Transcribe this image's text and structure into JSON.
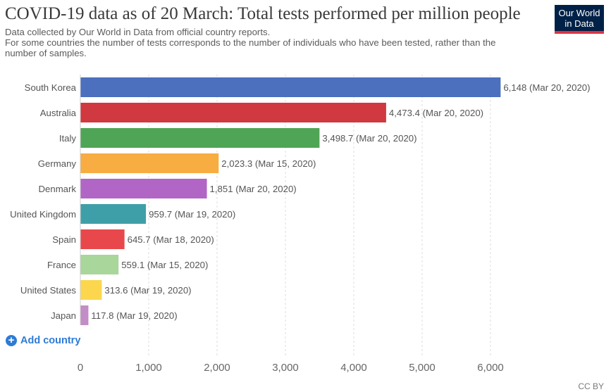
{
  "header": {
    "title": "COVID-19 data as of 20 March: Total tests performed per million people",
    "subtitle_line1": "Data collected by Our World in Data from official country reports.",
    "subtitle_line2": "For some countries the number of tests corresponds to the number of individuals who have been tested, rather than the",
    "subtitle_line3": "number of samples."
  },
  "logo": {
    "line1": "Our World",
    "line2": "in Data",
    "bg_color": "#002147",
    "accent_color": "#dd3342"
  },
  "controls": {
    "add_country_label": "Add country",
    "add_icon": "plus-circle-icon"
  },
  "footer": {
    "license": "CC BY"
  },
  "chart_data": {
    "type": "bar",
    "orientation": "horizontal",
    "categories": [
      "South Korea",
      "Australia",
      "Italy",
      "Germany",
      "Denmark",
      "United Kingdom",
      "Spain",
      "France",
      "United States",
      "Japan"
    ],
    "values": [
      6148,
      4473.4,
      3498.7,
      2023.3,
      1851,
      959.7,
      645.7,
      559.1,
      313.6,
      117.8
    ],
    "value_labels": [
      "6,148 (Mar 20, 2020)",
      "4,473.4 (Mar 20, 2020)",
      "3,498.7 (Mar 20, 2020)",
      "2,023.3 (Mar 15, 2020)",
      "1,851 (Mar 20, 2020)",
      "959.7 (Mar 19, 2020)",
      "645.7 (Mar 18, 2020)",
      "559.1 (Mar 15, 2020)",
      "313.6 (Mar 19, 2020)",
      "117.8 (Mar 19, 2020)"
    ],
    "colors": [
      "#4c6fbe",
      "#d0393f",
      "#4fa556",
      "#f7ad41",
      "#b166c5",
      "#3f9fa8",
      "#e8484b",
      "#a9d69b",
      "#fcd64d",
      "#c28ec5"
    ],
    "xlim": [
      0,
      6000
    ],
    "xticks": [
      0,
      1000,
      2000,
      3000,
      4000,
      5000,
      6000
    ],
    "xtick_labels": [
      "0",
      "1,000",
      "2,000",
      "3,000",
      "4,000",
      "5,000",
      "6,000"
    ],
    "grid": "vertical-dashed",
    "title": "COVID-19 data as of 20 March: Total tests performed per million people",
    "xlabel": "",
    "ylabel": ""
  }
}
